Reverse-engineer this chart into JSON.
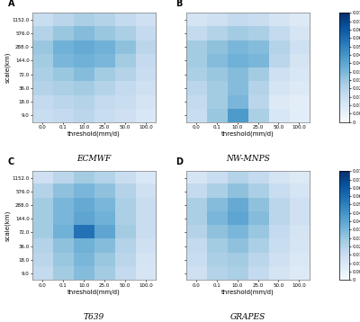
{
  "panels": [
    "A",
    "B",
    "C",
    "D"
  ],
  "titles": [
    "ECMWF",
    "NW-MNPS",
    "T639",
    "GRAPES"
  ],
  "y_labels": [
    "9.0",
    "18.0",
    "36.0",
    "72.0",
    "144.0",
    "288.0",
    "576.0",
    "1152.0"
  ],
  "x_labels": [
    "0.0",
    "0.1",
    "10.0",
    "25.0",
    "50.0",
    "100.0"
  ],
  "xlabel": "threshold(mm/d)",
  "ylabel": "scale(km)",
  "vmin": 0.0,
  "vmax": 0.078,
  "colorbar_ticks": [
    0,
    0.006,
    0.012,
    0.018,
    0.024,
    0.03,
    0.036,
    0.042,
    0.048,
    0.054,
    0.06,
    0.066,
    0.072,
    0.078
  ],
  "data_A": [
    [
      0.018,
      0.02,
      0.022,
      0.018,
      0.016,
      0.012
    ],
    [
      0.02,
      0.022,
      0.024,
      0.02,
      0.018,
      0.014
    ],
    [
      0.024,
      0.026,
      0.028,
      0.024,
      0.02,
      0.016
    ],
    [
      0.026,
      0.03,
      0.034,
      0.028,
      0.024,
      0.018
    ],
    [
      0.028,
      0.036,
      0.038,
      0.036,
      0.028,
      0.02
    ],
    [
      0.03,
      0.038,
      0.04,
      0.038,
      0.032,
      0.022
    ],
    [
      0.024,
      0.03,
      0.034,
      0.03,
      0.026,
      0.02
    ],
    [
      0.018,
      0.022,
      0.026,
      0.024,
      0.02,
      0.016
    ]
  ],
  "data_B": [
    [
      0.018,
      0.03,
      0.046,
      0.026,
      0.012,
      0.008
    ],
    [
      0.02,
      0.028,
      0.036,
      0.022,
      0.01,
      0.008
    ],
    [
      0.022,
      0.028,
      0.034,
      0.024,
      0.014,
      0.01
    ],
    [
      0.026,
      0.03,
      0.034,
      0.028,
      0.016,
      0.012
    ],
    [
      0.028,
      0.034,
      0.038,
      0.036,
      0.022,
      0.014
    ],
    [
      0.028,
      0.032,
      0.036,
      0.034,
      0.024,
      0.016
    ],
    [
      0.02,
      0.024,
      0.028,
      0.026,
      0.02,
      0.013
    ],
    [
      0.014,
      0.016,
      0.02,
      0.018,
      0.014,
      0.01
    ]
  ],
  "data_C": [
    [
      0.02,
      0.028,
      0.034,
      0.028,
      0.02,
      0.013
    ],
    [
      0.022,
      0.03,
      0.036,
      0.03,
      0.022,
      0.014
    ],
    [
      0.024,
      0.032,
      0.038,
      0.034,
      0.024,
      0.016
    ],
    [
      0.028,
      0.038,
      0.058,
      0.042,
      0.028,
      0.018
    ],
    [
      0.028,
      0.036,
      0.042,
      0.038,
      0.026,
      0.018
    ],
    [
      0.028,
      0.036,
      0.04,
      0.036,
      0.026,
      0.018
    ],
    [
      0.024,
      0.032,
      0.036,
      0.032,
      0.024,
      0.016
    ],
    [
      0.016,
      0.022,
      0.028,
      0.024,
      0.018,
      0.012
    ]
  ],
  "data_D": [
    [
      0.016,
      0.024,
      0.026,
      0.02,
      0.014,
      0.01
    ],
    [
      0.018,
      0.026,
      0.028,
      0.022,
      0.016,
      0.011
    ],
    [
      0.02,
      0.028,
      0.032,
      0.026,
      0.018,
      0.013
    ],
    [
      0.024,
      0.032,
      0.036,
      0.03,
      0.02,
      0.014
    ],
    [
      0.026,
      0.036,
      0.042,
      0.034,
      0.022,
      0.016
    ],
    [
      0.026,
      0.034,
      0.04,
      0.032,
      0.022,
      0.016
    ],
    [
      0.02,
      0.026,
      0.032,
      0.026,
      0.018,
      0.013
    ],
    [
      0.013,
      0.018,
      0.024,
      0.02,
      0.014,
      0.01
    ]
  ],
  "cmap": "Blues"
}
